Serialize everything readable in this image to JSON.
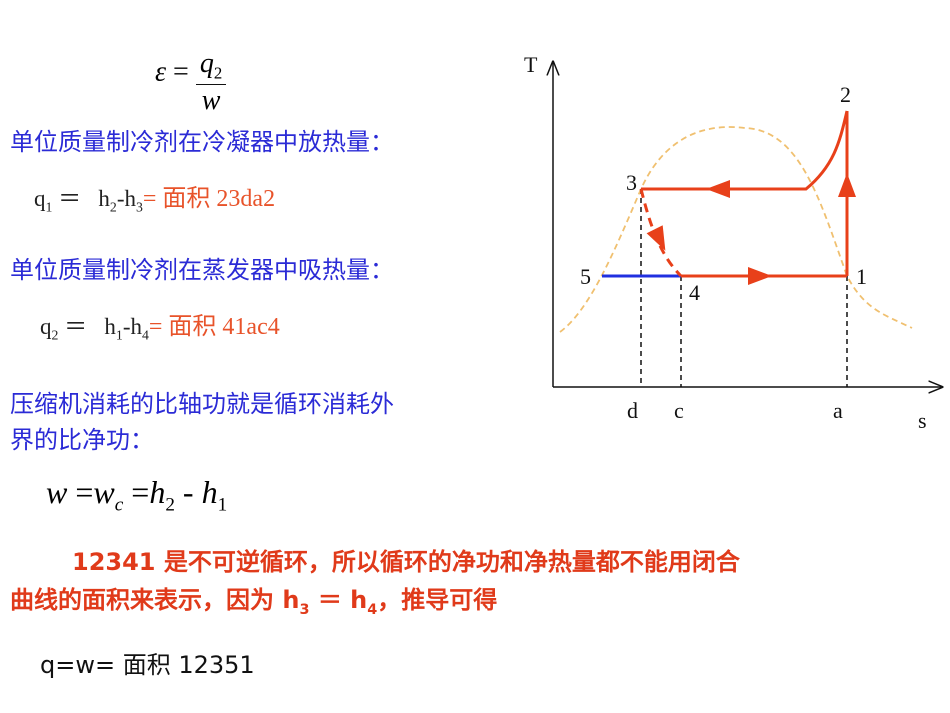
{
  "formulas": {
    "efficiency": {
      "lhs": "ε",
      "eq": "=",
      "numerator": "q",
      "numerator_sub": "2",
      "denominator": "w"
    },
    "work": {
      "w": "w",
      "eq1": "=",
      "wc": "w",
      "wc_sub": "c",
      "eq2": "=",
      "h2": "h",
      "h2_sub": "2",
      "minus": "-",
      "h1": "h",
      "h1_sub": "1"
    }
  },
  "lines": {
    "condenser_heading": "单位质量制冷剂在冷凝器中放热量：",
    "q1": [
      "q",
      "1",
      " ＝ ",
      "h",
      "2",
      "-h",
      "3",
      "= 面积 23da2"
    ],
    "evaporator_heading": "单位质量制冷剂在蒸发器中吸热量：",
    "q2": [
      "q",
      "2",
      " ＝ ",
      "h",
      "1",
      "-h",
      "4",
      "= 面积 41ac4"
    ],
    "compressor": [
      "压缩机消耗的比轴功就是循环消耗外",
      "界的比净功："
    ],
    "irreversible": [
      "12341 是不可逆循环，所以循环的净功和净热量都不能用闭合",
      "曲线的面积来表示，因为 h",
      "3",
      " ＝ h",
      "4",
      "，推导可得"
    ],
    "result": "q=w= 面积 12351"
  },
  "diagram": {
    "y_axis": "T",
    "x_axis": "s",
    "points": [
      "1",
      "2",
      "3",
      "4",
      "5"
    ],
    "x_marks": [
      "d",
      "c",
      "a"
    ]
  }
}
